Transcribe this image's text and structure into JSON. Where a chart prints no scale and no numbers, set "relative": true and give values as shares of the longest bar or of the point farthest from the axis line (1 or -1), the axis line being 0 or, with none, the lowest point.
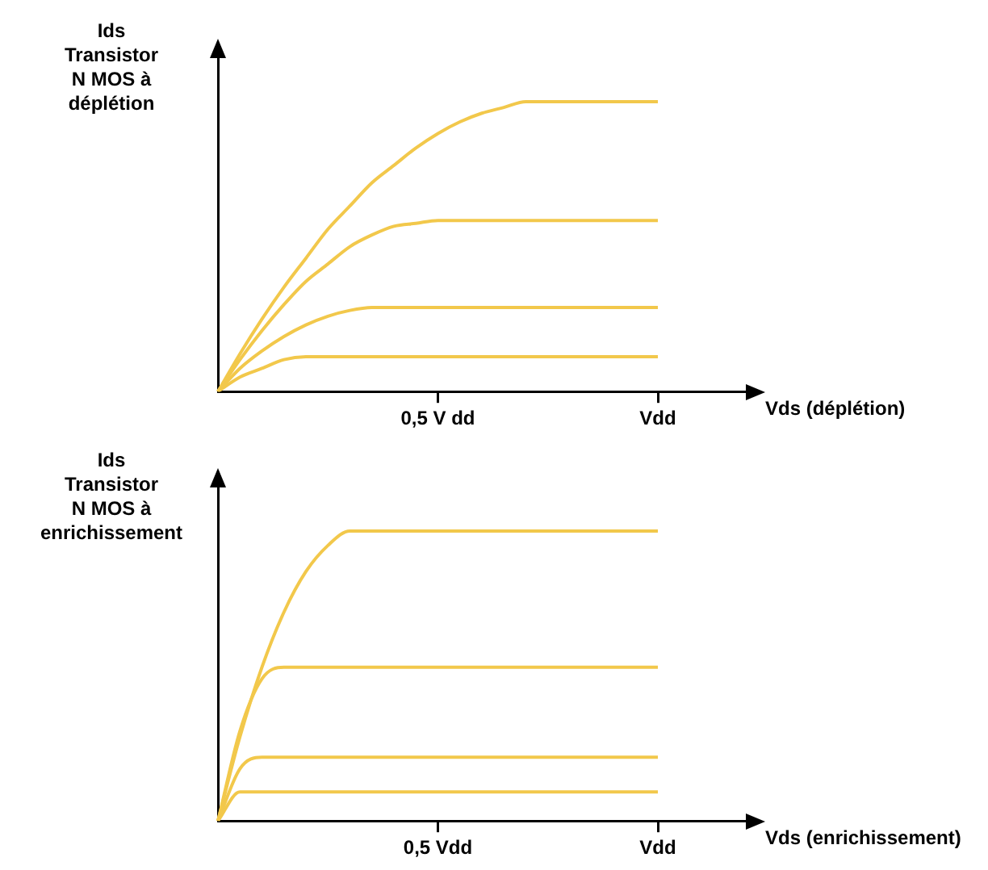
{
  "chart_data": [
    {
      "type": "line",
      "relative": true,
      "ylabel": "Ids\nTransistor\nN MOS à\ndéplétion",
      "xlabel": "Vds (déplétion)",
      "categories": [
        null,
        null,
        null,
        null,
        null,
        null,
        null,
        null,
        null,
        null,
        "0,5 V dd",
        null,
        null,
        null,
        null,
        null,
        null,
        null,
        null,
        null,
        "Vdd",
        null,
        null,
        null,
        null
      ],
      "grid": false,
      "legend": false,
      "marker": "none",
      "line_style": "solid",
      "series": [
        {
          "color": "#f2c84b",
          "values": [
            0,
            0.13,
            0.25,
            0.36,
            0.46,
            0.56,
            0.64,
            0.72,
            0.78,
            0.84,
            0.89,
            0.93,
            0.96,
            0.98,
            1,
            1,
            1,
            1,
            1,
            1,
            1,
            null,
            null,
            null,
            null
          ]
        },
        {
          "color": "#f2c84b",
          "values": [
            0,
            0.11,
            0.21,
            0.3,
            0.38,
            0.44,
            0.5,
            0.54,
            0.57,
            0.58,
            0.59,
            0.59,
            0.59,
            0.59,
            0.59,
            0.59,
            0.59,
            0.59,
            0.59,
            0.59,
            0.59,
            null,
            null,
            null,
            null
          ]
        },
        {
          "color": "#f2c84b",
          "values": [
            0,
            0.08,
            0.14,
            0.19,
            0.23,
            0.26,
            0.28,
            0.29,
            0.29,
            0.29,
            0.29,
            0.29,
            0.29,
            0.29,
            0.29,
            0.29,
            0.29,
            0.29,
            0.29,
            0.29,
            0.29,
            null,
            null,
            null,
            null
          ]
        },
        {
          "color": "#f2c84b",
          "values": [
            0,
            0.05,
            0.08,
            0.11,
            0.12,
            0.12,
            0.12,
            0.12,
            0.12,
            0.12,
            0.12,
            0.12,
            0.12,
            0.12,
            0.12,
            0.12,
            0.12,
            0.12,
            0.12,
            0.12,
            0.12,
            null,
            null,
            null,
            null
          ]
        }
      ]
    },
    {
      "type": "line",
      "relative": true,
      "ylabel": "Ids\nTransistor\nN MOS à\nenrichissement",
      "xlabel": "Vds (enrichissement)",
      "categories": [
        null,
        null,
        null,
        null,
        null,
        null,
        null,
        null,
        null,
        null,
        "0,5 Vdd",
        null,
        null,
        null,
        null,
        null,
        null,
        null,
        null,
        null,
        "Vdd",
        null,
        null,
        null,
        null
      ],
      "grid": false,
      "legend": false,
      "marker": "none",
      "line_style": "solid",
      "series": [
        {
          "color": "#f2c84b",
          "values": [
            0,
            0.29,
            0.53,
            0.72,
            0.86,
            0.95,
            1,
            1,
            1,
            1,
            1,
            1,
            1,
            1,
            1,
            1,
            1,
            1,
            1,
            1,
            1,
            null,
            null,
            null,
            null
          ]
        },
        {
          "color": "#f2c84b",
          "values": [
            0,
            0.31,
            0.49,
            0.53,
            0.53,
            0.53,
            0.53,
            0.53,
            0.53,
            0.53,
            0.53,
            0.53,
            0.53,
            0.53,
            0.53,
            0.53,
            0.53,
            0.53,
            0.53,
            0.53,
            0.53,
            null,
            null,
            null,
            null
          ]
        },
        {
          "color": "#f2c84b",
          "values": [
            0,
            0.18,
            0.22,
            0.22,
            0.22,
            0.22,
            0.22,
            0.22,
            0.22,
            0.22,
            0.22,
            0.22,
            0.22,
            0.22,
            0.22,
            0.22,
            0.22,
            0.22,
            0.22,
            0.22,
            0.22,
            null,
            null,
            null,
            null
          ]
        },
        {
          "color": "#f2c84b",
          "values": [
            0,
            0.1,
            0.1,
            0.1,
            0.1,
            0.1,
            0.1,
            0.1,
            0.1,
            0.1,
            0.1,
            0.1,
            0.1,
            0.1,
            0.1,
            0.1,
            0.1,
            0.1,
            0.1,
            0.1,
            0.1,
            null,
            null,
            null,
            null
          ]
        }
      ]
    }
  ]
}
